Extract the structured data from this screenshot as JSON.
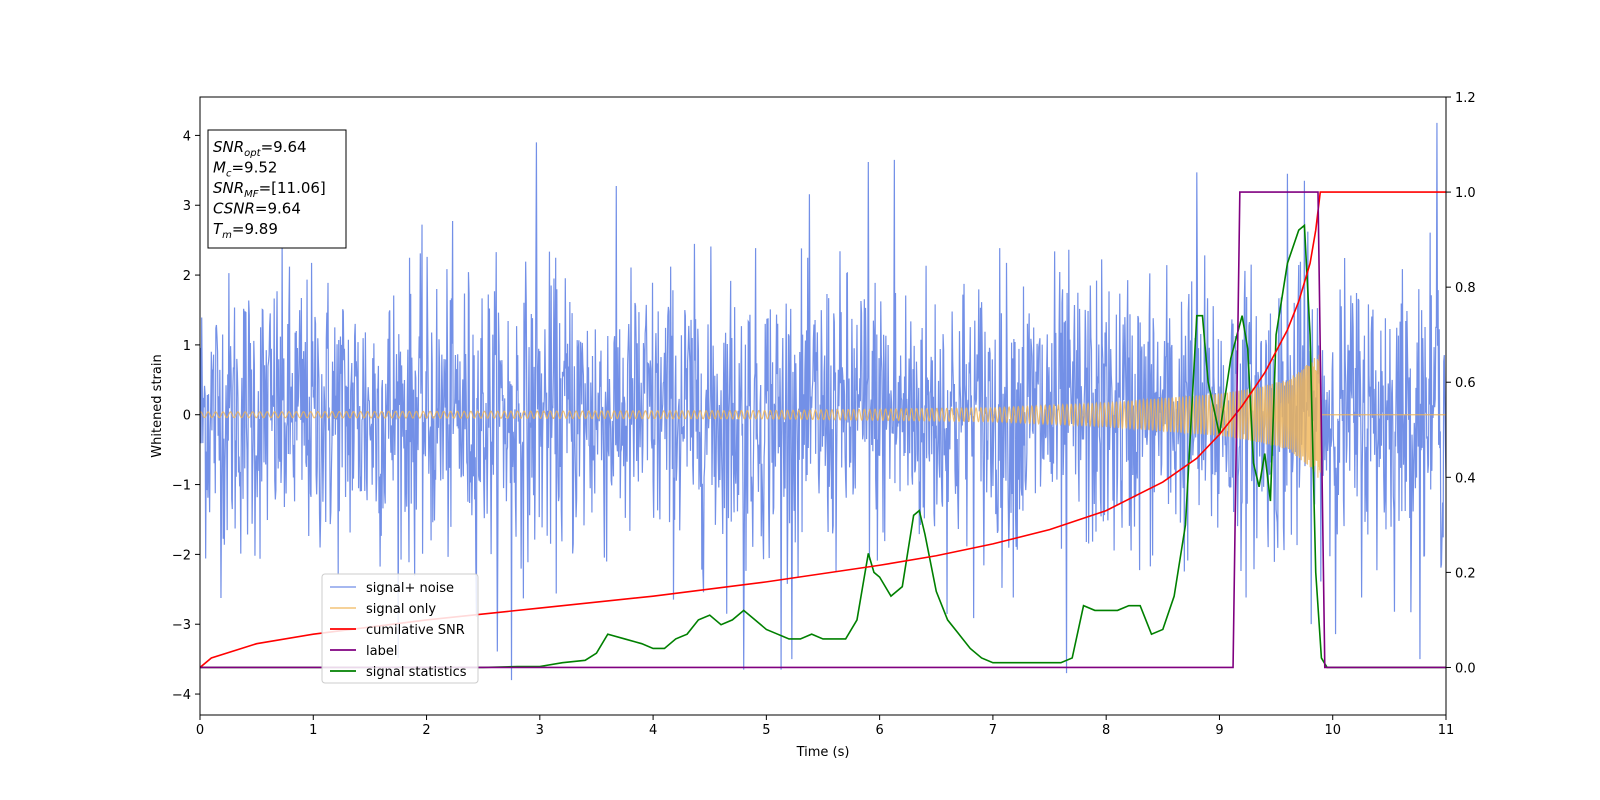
{
  "chart_data": {
    "type": "line",
    "title": "",
    "xlabel": "Time (s)",
    "ylabel": "Whitened strain",
    "y2label": "",
    "xlim": [
      0,
      11
    ],
    "ylim": [
      -4.3,
      4.55
    ],
    "y2lim": [
      -0.1,
      1.2
    ],
    "xticks": [
      "0",
      "1",
      "2",
      "3",
      "4",
      "5",
      "6",
      "7",
      "8",
      "9",
      "10",
      "11"
    ],
    "yticks": [
      "−4",
      "−3",
      "−2",
      "−1",
      "0",
      "1",
      "2",
      "3",
      "4"
    ],
    "y2ticks": [
      "0.0",
      "0.2",
      "0.4",
      "0.6",
      "0.8",
      "1.0",
      "1.2"
    ],
    "grid": false,
    "legend_position": "lower-left",
    "annotation": {
      "lines": [
        {
          "key": "SNR",
          "sub": "opt",
          "value": "=9.64"
        },
        {
          "key": "M",
          "sub": "c",
          "value": "=9.52"
        },
        {
          "key": "SNR",
          "sub": "MF",
          "value": "=[11.06]"
        },
        {
          "key": "CSNR",
          "sub": "",
          "value": "=9.64"
        },
        {
          "key": "T",
          "sub": "m",
          "value": "=9.89"
        }
      ]
    },
    "series": [
      {
        "name": "signal+ noise",
        "color": "#6b8ae6",
        "axis": "left",
        "kind": "noise",
        "description_values": {
          "std": 1.0,
          "spikes": [
            [
              2.75,
              -3.8
            ],
            [
              2.97,
              3.9
            ],
            [
              4.8,
              -3.65
            ],
            [
              5.13,
              -3.65
            ],
            [
              5.9,
              3.62
            ],
            [
              6.13,
              3.65
            ],
            [
              7.65,
              -3.7
            ],
            [
              8.8,
              3.47
            ],
            [
              9.6,
              3.45
            ],
            [
              9.75,
              3.35
            ],
            [
              10.92,
              4.18
            ]
          ]
        }
      },
      {
        "name": "signal only",
        "color": "#f0b455",
        "axis": "left",
        "kind": "chirp",
        "envelope": [
          [
            0,
            0.04
          ],
          [
            5,
            0.06
          ],
          [
            7,
            0.1
          ],
          [
            8,
            0.17
          ],
          [
            8.6,
            0.25
          ],
          [
            9,
            0.3
          ],
          [
            9.3,
            0.38
          ],
          [
            9.6,
            0.5
          ],
          [
            9.8,
            0.75
          ],
          [
            9.89,
            0.95
          ],
          [
            9.9,
            0.0
          ],
          [
            11,
            0.0
          ]
        ]
      },
      {
        "name": "cumilative SNR",
        "color": "#ff0000",
        "axis": "right",
        "x": [
          0,
          0.1,
          0.5,
          1,
          2,
          3,
          4,
          5,
          6,
          6.5,
          7,
          7.5,
          8,
          8.5,
          8.8,
          9,
          9.2,
          9.4,
          9.6,
          9.7,
          9.8,
          9.85,
          9.89,
          10,
          11
        ],
        "y": [
          0.0,
          0.02,
          0.05,
          0.07,
          0.1,
          0.125,
          0.15,
          0.18,
          0.215,
          0.235,
          0.26,
          0.29,
          0.33,
          0.39,
          0.44,
          0.49,
          0.55,
          0.62,
          0.71,
          0.77,
          0.85,
          0.92,
          1.0,
          1.0,
          1.0
        ]
      },
      {
        "name": "label",
        "color": "#800080",
        "axis": "right",
        "x": [
          0,
          9.12,
          9.18,
          9.87,
          9.93,
          11
        ],
        "y": [
          0,
          0,
          1,
          1,
          0,
          0
        ]
      },
      {
        "name": "signal statistics",
        "color": "#008000",
        "axis": "right",
        "x": [
          0,
          1,
          2,
          2.5,
          2.8,
          3,
          3.2,
          3.4,
          3.5,
          3.6,
          3.75,
          3.9,
          4.0,
          4.1,
          4.2,
          4.3,
          4.4,
          4.5,
          4.6,
          4.7,
          4.8,
          4.9,
          5.0,
          5.1,
          5.2,
          5.3,
          5.4,
          5.5,
          5.6,
          5.7,
          5.8,
          5.9,
          5.95,
          6.0,
          6.1,
          6.2,
          6.3,
          6.35,
          6.4,
          6.5,
          6.55,
          6.6,
          6.7,
          6.8,
          6.9,
          7.0,
          7.2,
          7.4,
          7.6,
          7.7,
          7.8,
          7.9,
          8.0,
          8.1,
          8.2,
          8.3,
          8.4,
          8.5,
          8.6,
          8.7,
          8.8,
          8.85,
          8.9,
          9.0,
          9.1,
          9.2,
          9.25,
          9.3,
          9.35,
          9.4,
          9.45,
          9.5,
          9.6,
          9.7,
          9.75,
          9.8,
          9.85,
          9.9,
          9.95,
          10.0,
          11
        ],
        "y": [
          0,
          0,
          0,
          0,
          0.002,
          0.002,
          0.01,
          0.015,
          0.03,
          0.07,
          0.06,
          0.05,
          0.04,
          0.04,
          0.06,
          0.07,
          0.1,
          0.11,
          0.09,
          0.1,
          0.12,
          0.1,
          0.08,
          0.07,
          0.06,
          0.06,
          0.07,
          0.06,
          0.06,
          0.06,
          0.1,
          0.24,
          0.2,
          0.19,
          0.15,
          0.17,
          0.32,
          0.33,
          0.28,
          0.16,
          0.13,
          0.1,
          0.07,
          0.04,
          0.02,
          0.01,
          0.01,
          0.01,
          0.01,
          0.02,
          0.13,
          0.12,
          0.12,
          0.12,
          0.13,
          0.13,
          0.07,
          0.08,
          0.15,
          0.3,
          0.74,
          0.74,
          0.6,
          0.49,
          0.65,
          0.74,
          0.67,
          0.43,
          0.38,
          0.45,
          0.35,
          0.7,
          0.85,
          0.92,
          0.93,
          0.7,
          0.2,
          0.02,
          0.0,
          0.0,
          0.0
        ]
      }
    ]
  }
}
